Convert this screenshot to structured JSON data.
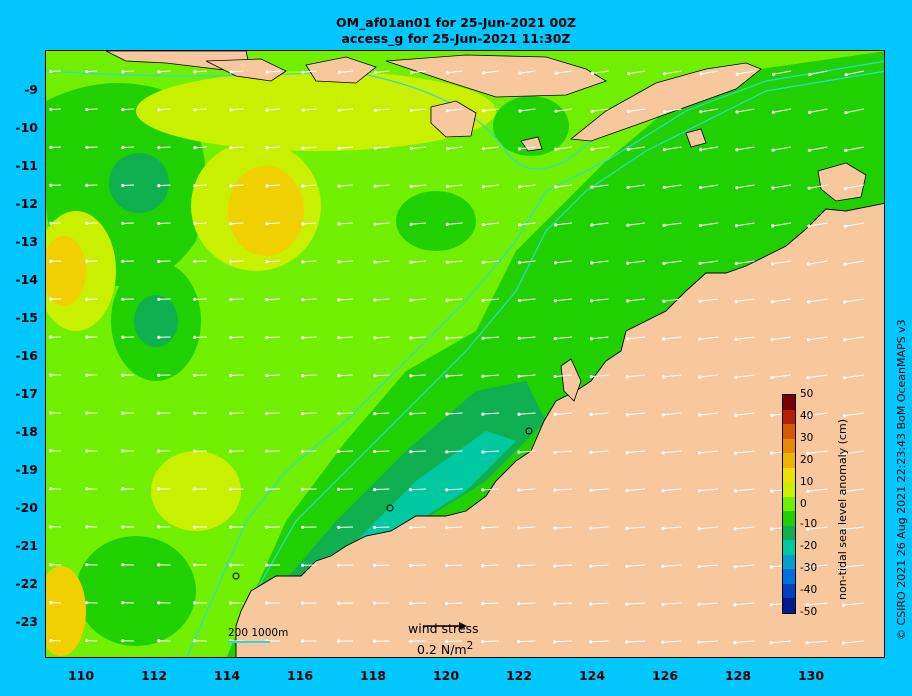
{
  "title_line1": "OM_af01an01 for 25-Jun-2021 00Z",
  "title_line2": "access_g for 25-Jun-2021 11:30Z",
  "credit": "© CSIRO 2021  26 Aug 2021 22:23:43 BoM OceanMAPS v3",
  "y_ticks": [
    "-9",
    "-10",
    "-11",
    "-12",
    "-13",
    "-14",
    "-15",
    "-16",
    "-17",
    "-18",
    "-19",
    "-20",
    "-21",
    "-22",
    "-23"
  ],
  "x_ticks": [
    "110",
    "112",
    "114",
    "116",
    "118",
    "120",
    "122",
    "124",
    "126",
    "128",
    "130"
  ],
  "colorbar": {
    "title": "non-tidal sea level anomaly (cm)",
    "labels": [
      "50",
      "40",
      "30",
      "20",
      "10",
      "0",
      "-10",
      "-20",
      "-30",
      "-40",
      "-50"
    ],
    "colors": [
      "#7a0000",
      "#b22200",
      "#d65a00",
      "#e88a00",
      "#f0b400",
      "#f0e000",
      "#c8f000",
      "#70f000",
      "#20d000",
      "#10b050",
      "#00c8a0",
      "#00a0d0",
      "#0070e0",
      "#0040c0",
      "#001890"
    ]
  },
  "contour_legend": "200  1000m",
  "wind_stress": {
    "label": "wind stress",
    "scale_value": "0.2 N/m",
    "scale_exp": "2"
  },
  "colors": {
    "land": "#f7c89e",
    "sea_zero": "#20d000",
    "sea_positive": "#70f000",
    "sea_high": "#c8f000",
    "sea_peak": "#f0d000",
    "sea_negative": "#10b050",
    "sea_low": "#00c8a0",
    "frame": "#00c8ff",
    "contour": "#29d9e0",
    "arrows": "#ffffff"
  }
}
